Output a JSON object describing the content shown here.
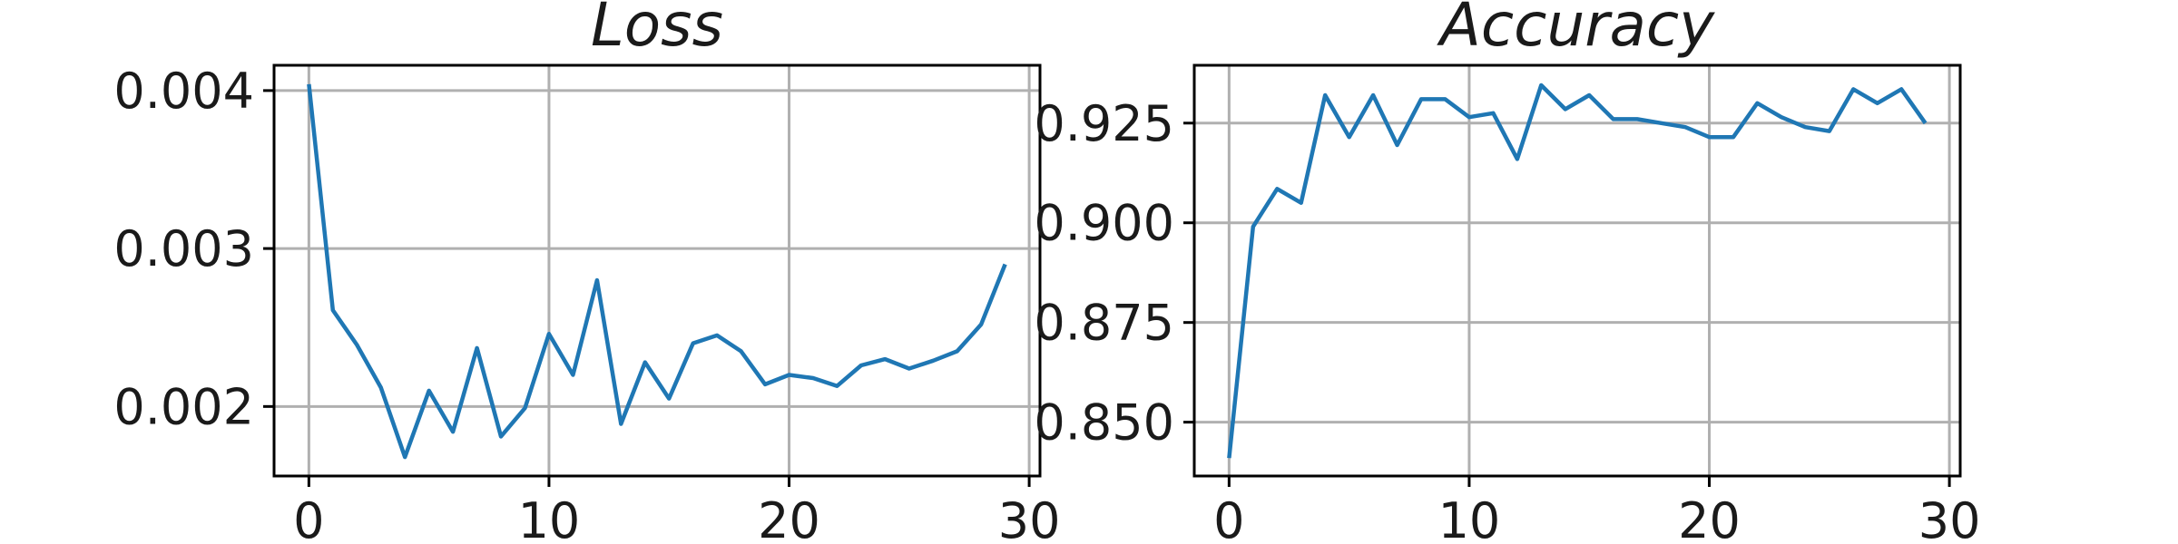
{
  "chart_data": [
    {
      "type": "line",
      "title": "Loss",
      "xlabel": "",
      "ylabel": "",
      "grid": true,
      "xlim": [
        -1.45,
        30.45
      ],
      "ylim": [
        0.00156,
        0.00416
      ],
      "x_ticks": [
        0,
        10,
        20,
        30
      ],
      "x_tick_labels": [
        "0",
        "10",
        "20",
        "30"
      ],
      "y_ticks": [
        0.002,
        0.003,
        0.004
      ],
      "y_tick_labels": [
        "0.002",
        "0.003",
        "0.004"
      ],
      "series": [
        {
          "color": "#1f77b4",
          "x": [
            0,
            1,
            2,
            3,
            4,
            5,
            6,
            7,
            8,
            9,
            10,
            11,
            12,
            13,
            14,
            15,
            16,
            17,
            18,
            19,
            20,
            21,
            22,
            23,
            24,
            25,
            26,
            27,
            28,
            29
          ],
          "values": [
            0.00404,
            0.00261,
            0.00239,
            0.00212,
            0.00168,
            0.0021,
            0.00184,
            0.00237,
            0.00181,
            0.00199,
            0.00246,
            0.0022,
            0.0028,
            0.00189,
            0.00228,
            0.00205,
            0.0024,
            0.00245,
            0.00235,
            0.00214,
            0.0022,
            0.00218,
            0.00213,
            0.00226,
            0.0023,
            0.00224,
            0.00229,
            0.00235,
            0.00252,
            0.0029
          ]
        }
      ]
    },
    {
      "type": "line",
      "title": "Accuracy",
      "xlabel": "",
      "ylabel": "",
      "grid": true,
      "xlim": [
        -1.45,
        30.45
      ],
      "ylim": [
        0.8365,
        0.9395
      ],
      "x_ticks": [
        0,
        10,
        20,
        30
      ],
      "x_tick_labels": [
        "0",
        "10",
        "20",
        "30"
      ],
      "y_ticks": [
        0.85,
        0.875,
        0.9,
        0.925
      ],
      "y_tick_labels": [
        "0.850",
        "0.875",
        "0.900",
        "0.925"
      ],
      "series": [
        {
          "color": "#1f77b4",
          "x": [
            0,
            1,
            2,
            3,
            4,
            5,
            6,
            7,
            8,
            9,
            10,
            11,
            12,
            13,
            14,
            15,
            16,
            17,
            18,
            19,
            20,
            21,
            22,
            23,
            24,
            25,
            26,
            27,
            28,
            29
          ],
          "values": [
            0.841,
            0.899,
            0.9085,
            0.905,
            0.932,
            0.9215,
            0.932,
            0.9195,
            0.931,
            0.931,
            0.9265,
            0.9275,
            0.916,
            0.9345,
            0.9285,
            0.932,
            0.926,
            0.926,
            0.925,
            0.924,
            0.9215,
            0.9215,
            0.93,
            0.9265,
            0.924,
            0.923,
            0.9335,
            0.93,
            0.9335,
            0.925
          ]
        }
      ]
    }
  ]
}
